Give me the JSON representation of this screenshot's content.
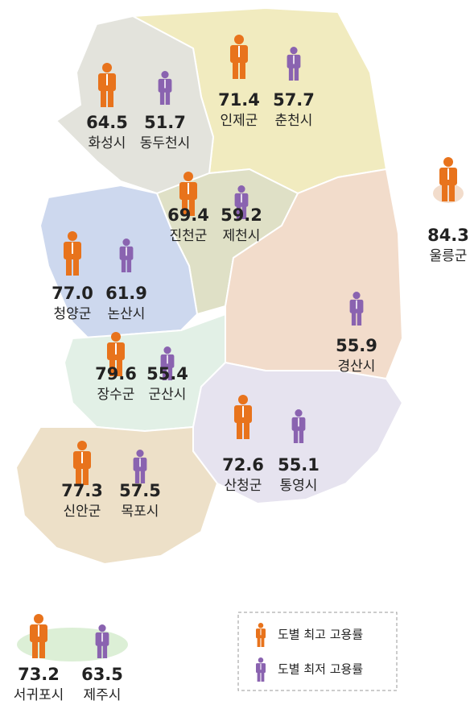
{
  "regions": [
    {
      "high": {
        "name": "화성시",
        "value": "64.5"
      },
      "low": {
        "name": "동두천시",
        "value": "51.7"
      }
    },
    {
      "high": {
        "name": "인제군",
        "value": "71.4"
      },
      "low": {
        "name": "춘천시",
        "value": "57.7"
      }
    },
    {
      "high": {
        "name": "진천군",
        "value": "69.4"
      },
      "low": {
        "name": "제천시",
        "value": "59.2"
      }
    },
    {
      "high": {
        "name": "청양군",
        "value": "77.0"
      },
      "low": {
        "name": "논산시",
        "value": "61.9"
      }
    },
    {
      "high": {
        "name": "장수군",
        "value": "79.6"
      },
      "low": {
        "name": "군산시",
        "value": "55.4"
      }
    },
    {
      "high": {
        "name": "신안군",
        "value": "77.3"
      },
      "low": {
        "name": "목포시",
        "value": "57.5"
      }
    },
    {
      "high": {
        "name": "울릉군",
        "value": "84.3"
      },
      "low": {
        "name": "경산시",
        "value": "55.9"
      }
    },
    {
      "high": {
        "name": "산청군",
        "value": "72.6"
      },
      "low": {
        "name": "통영시",
        "value": "55.1"
      }
    },
    {
      "high": {
        "name": "서귀포시",
        "value": "73.2"
      },
      "low": {
        "name": "제주시",
        "value": "63.5"
      }
    }
  ],
  "legend": {
    "high": "도별 최고 고용률",
    "low": "도별 최저 고용률"
  }
}
